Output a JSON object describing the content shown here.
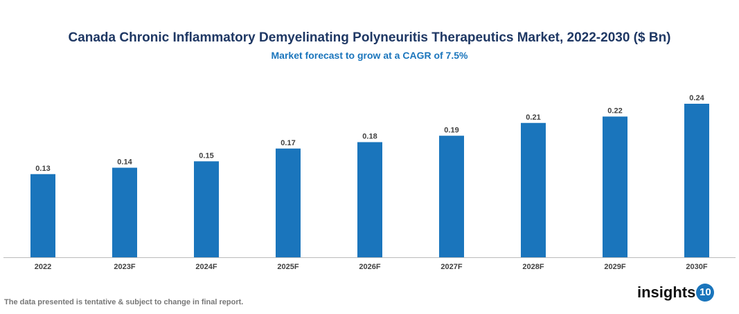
{
  "chart_data": {
    "type": "bar",
    "title": "Canada Chronic Inflammatory Demyelinating Polyneuritis Therapeutics Market, 2022-2030 ($ Bn)",
    "subtitle": "Market forecast to grow at a CAGR of 7.5%",
    "categories": [
      "2022",
      "2023F",
      "2024F",
      "2025F",
      "2026F",
      "2027F",
      "2028F",
      "2029F",
      "2030F"
    ],
    "values": [
      0.13,
      0.14,
      0.15,
      0.17,
      0.18,
      0.19,
      0.21,
      0.22,
      0.24
    ],
    "ylim": [
      0,
      0.24
    ],
    "grid": false,
    "bar_color": "#1a75bc"
  },
  "footer": {
    "note": "The data presented is tentative & subject to change in final report.",
    "logo_text": "insights",
    "logo_number": "10"
  }
}
